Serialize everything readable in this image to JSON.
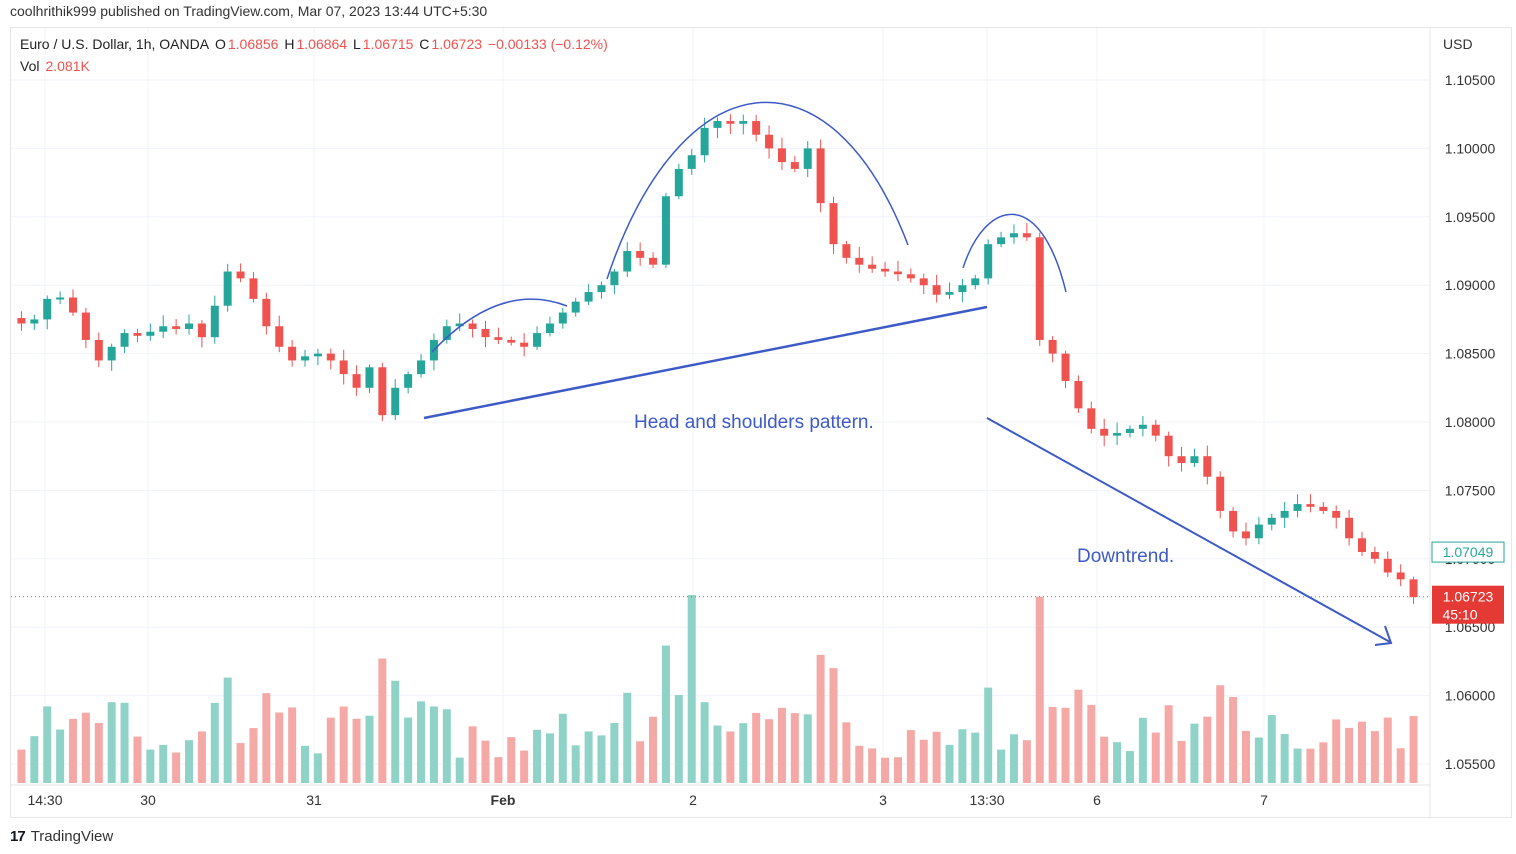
{
  "header": {
    "published_line": "coolhrithik999 published on TradingView.com, Mar 07, 2023 13:44 UTC+5:30"
  },
  "legend": {
    "symbol": "Euro / U.S. Dollar, 1h, OANDA",
    "o_label": "O",
    "o_value": "1.06856",
    "h_label": "H",
    "h_value": "1.06864",
    "l_label": "L",
    "l_value": "1.06715",
    "c_label": "C",
    "c_value": "1.06723",
    "change": "−0.00133 (−0.12%)",
    "vol_label": "Vol",
    "vol_value": "2.081K"
  },
  "annotations": {
    "pattern": "Head and shoulders pattern.",
    "trend": "Downtrend."
  },
  "footer": {
    "brand": "TradingView",
    "logo": "17"
  },
  "colors": {
    "up": "#26a69a",
    "down": "#ef5350",
    "vol_up": "#8fd3c8",
    "vol_down": "#f4a9a6",
    "annotation": "#3d5ac7",
    "grid": "#f0f3fa"
  },
  "chart_data": {
    "type": "candlestick",
    "symbol": "EURUSD",
    "interval": "1h",
    "currency_label": "USD",
    "y_ticks": [
      "1.10500",
      "1.10000",
      "1.09500",
      "1.09000",
      "1.08500",
      "1.08000",
      "1.07500",
      "1.07000",
      "1.06500",
      "1.06000",
      "1.05500"
    ],
    "x_ticks": [
      "14:30",
      "30",
      "31",
      "Feb",
      "2",
      "3",
      "13:30",
      "6",
      "7"
    ],
    "ylim": [
      1.0525,
      1.1075
    ],
    "last_price": "1.06723",
    "countdown": "45:10",
    "prev_marker": "1.07049",
    "grid": true,
    "series": [
      {
        "name": "EUR/USD",
        "kind": "ohlc",
        "close_path": [
          1.0872,
          1.0875,
          1.089,
          1.0891,
          1.088,
          1.086,
          1.0845,
          1.0855,
          1.0865,
          1.0863,
          1.0866,
          1.087,
          1.0868,
          1.0872,
          1.0862,
          1.0885,
          1.091,
          1.0905,
          1.089,
          1.087,
          1.0855,
          1.0845,
          1.0848,
          1.085,
          1.0845,
          1.0835,
          1.0825,
          1.084,
          1.0805,
          1.0825,
          1.0835,
          1.0845,
          1.086,
          1.087,
          1.0872,
          1.0868,
          1.0862,
          1.086,
          1.0858,
          1.0855,
          1.0865,
          1.0872,
          1.088,
          1.0888,
          1.0895,
          1.09,
          1.091,
          1.0925,
          1.092,
          1.0915,
          1.0965,
          1.0985,
          1.0995,
          1.1015,
          1.102,
          1.1018,
          1.102,
          1.101,
          1.1,
          1.099,
          1.0985,
          1.1,
          1.096,
          1.093,
          1.092,
          1.0915,
          1.0912,
          1.091,
          1.0908,
          1.0905,
          1.09,
          1.0893,
          1.0895,
          1.09,
          1.0905,
          1.093,
          1.0935,
          1.0938,
          1.0935,
          1.086,
          1.085,
          1.083,
          1.081,
          1.0795,
          1.079,
          1.0792,
          1.0795,
          1.0798,
          1.079,
          1.0775,
          1.077,
          1.0775,
          1.076,
          1.0735,
          1.072,
          1.0715,
          1.0725,
          1.073,
          1.0735,
          1.074,
          1.0738,
          1.0735,
          1.073,
          1.0715,
          1.0705,
          1.07,
          1.069,
          1.0685,
          1.0672
        ]
      },
      {
        "name": "Volume",
        "kind": "volume",
        "value": "2.081K"
      }
    ],
    "drawings": [
      {
        "kind": "neckline",
        "from": {
          "time": "31 late",
          "price": 1.0802
        },
        "to": {
          "time": "3 13:30",
          "price": 1.0883
        }
      },
      {
        "kind": "arc",
        "role": "left shoulder"
      },
      {
        "kind": "arc",
        "role": "head"
      },
      {
        "kind": "arc",
        "role": "right shoulder"
      },
      {
        "kind": "arrow",
        "role": "downtrend"
      }
    ]
  }
}
